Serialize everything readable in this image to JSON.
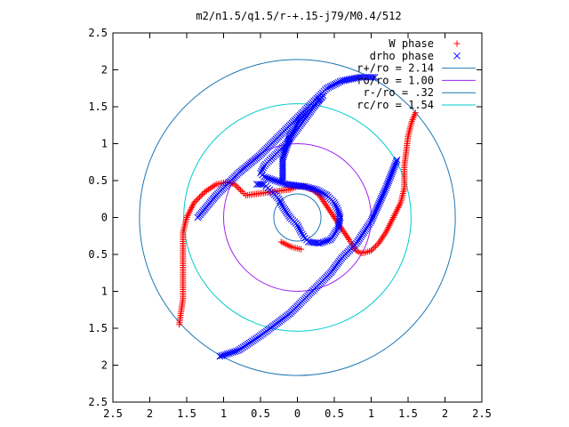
{
  "chart_data": {
    "type": "scatter",
    "title": "m2/n1.5/q1.5/r-+.15-j79/M0.4/512",
    "xlabel": "",
    "ylabel": "",
    "xlim": [
      -2.5,
      2.5
    ],
    "ylim": [
      -2.5,
      2.5
    ],
    "x_ticks": [
      -2.5,
      -2,
      -1.5,
      -1,
      -0.5,
      0,
      0.5,
      1,
      1.5,
      2,
      2.5
    ],
    "y_ticks": [
      -2.5,
      -2,
      -1.5,
      -1,
      -0.5,
      0,
      0.5,
      1,
      1.5,
      2,
      2.5
    ],
    "x_tick_labels": [
      "2.5",
      "2",
      "1.5",
      "1",
      "0.5",
      "0",
      "0.5",
      "1",
      "1.5",
      "2",
      "2.5"
    ],
    "y_tick_labels": [
      "2.5",
      "2",
      "1.5",
      "1",
      "0.5",
      "0",
      "0.5",
      "1",
      "1.5",
      "2",
      "2.5"
    ],
    "grid": false,
    "legend_position": "top-right",
    "series": [
      {
        "name": "W phase",
        "kind": "points",
        "marker": "plus",
        "color": "#ff0000",
        "x": [
          -1.6,
          -1.58,
          -1.55,
          -1.55,
          -1.55,
          -1.5,
          -1.4,
          -1.25,
          -1.1,
          -0.95,
          -0.85,
          -0.75,
          -0.7,
          -0.1,
          0.0,
          0.1,
          0.2,
          0.3,
          0.7,
          0.75,
          0.8,
          0.85,
          0.9,
          1.0,
          1.1,
          1.2,
          1.3,
          1.4,
          1.45,
          1.45,
          1.5,
          1.55,
          1.6,
          -0.22,
          -0.08,
          0.05
        ],
        "y": [
          -1.45,
          -1.3,
          -1.1,
          -0.6,
          -0.2,
          0.0,
          0.2,
          0.35,
          0.45,
          0.48,
          0.45,
          0.35,
          0.3,
          0.38,
          0.42,
          0.42,
          0.38,
          0.3,
          -0.3,
          -0.38,
          -0.45,
          -0.48,
          -0.48,
          -0.45,
          -0.35,
          -0.2,
          0.0,
          0.2,
          0.4,
          0.7,
          1.1,
          1.3,
          1.42,
          -0.33,
          -0.4,
          -0.43
        ]
      },
      {
        "name": "drho phase",
        "kind": "points",
        "marker": "cross",
        "color": "#0000ff",
        "x": [
          -1.05,
          -0.8,
          -0.5,
          -0.3,
          -0.1,
          0.1,
          0.25,
          0.45,
          0.6,
          0.8,
          1.0,
          1.2,
          1.35,
          -0.55,
          -0.45,
          -0.4,
          -0.35,
          -0.25,
          -0.2,
          -0.1,
          0.0,
          0.05,
          0.1,
          0.15,
          0.3,
          0.45,
          0.55,
          0.58,
          0.55,
          0.5,
          0.4,
          0.25,
          0.1,
          -0.15,
          -0.3,
          -0.45,
          -0.5,
          -0.45,
          -0.35,
          -0.15,
          0.0,
          0.15,
          0.3,
          0.35,
          0.25,
          0.05,
          -0.1,
          -0.2,
          -0.2,
          1.05,
          0.85,
          0.6,
          0.4,
          0.3,
          0.15,
          0.0,
          -0.2,
          -0.5,
          -0.8,
          -1.1,
          -1.35
        ],
        "y": [
          -1.88,
          -1.8,
          -1.6,
          -1.45,
          -1.3,
          -1.1,
          -0.95,
          -0.75,
          -0.55,
          -0.35,
          -0.05,
          0.4,
          0.78,
          0.45,
          0.45,
          0.4,
          0.35,
          0.25,
          0.15,
          0.0,
          -0.1,
          -0.2,
          -0.28,
          -0.33,
          -0.35,
          -0.3,
          -0.15,
          0.0,
          0.1,
          0.2,
          0.3,
          0.38,
          0.42,
          0.45,
          0.5,
          0.55,
          0.6,
          0.7,
          0.8,
          1.0,
          1.2,
          1.4,
          1.6,
          1.65,
          1.55,
          1.35,
          1.1,
          0.8,
          0.5,
          1.9,
          1.9,
          1.85,
          1.75,
          1.65,
          1.5,
          1.35,
          1.15,
          0.85,
          0.6,
          0.3,
          0.0
        ]
      },
      {
        "name": "r+/ro = 2.14",
        "kind": "circle",
        "radius": 2.14,
        "color": "#1f78b4"
      },
      {
        "name": "ro/ro = 1.00",
        "kind": "circle",
        "radius": 1.0,
        "color": "#a020f0"
      },
      {
        "name": "r-/ro = .32",
        "kind": "circle",
        "radius": 0.32,
        "color": "#1f78b4"
      },
      {
        "name": "rc/ro = 1.54",
        "kind": "circle",
        "radius": 1.54,
        "color": "#00cccc"
      }
    ]
  }
}
